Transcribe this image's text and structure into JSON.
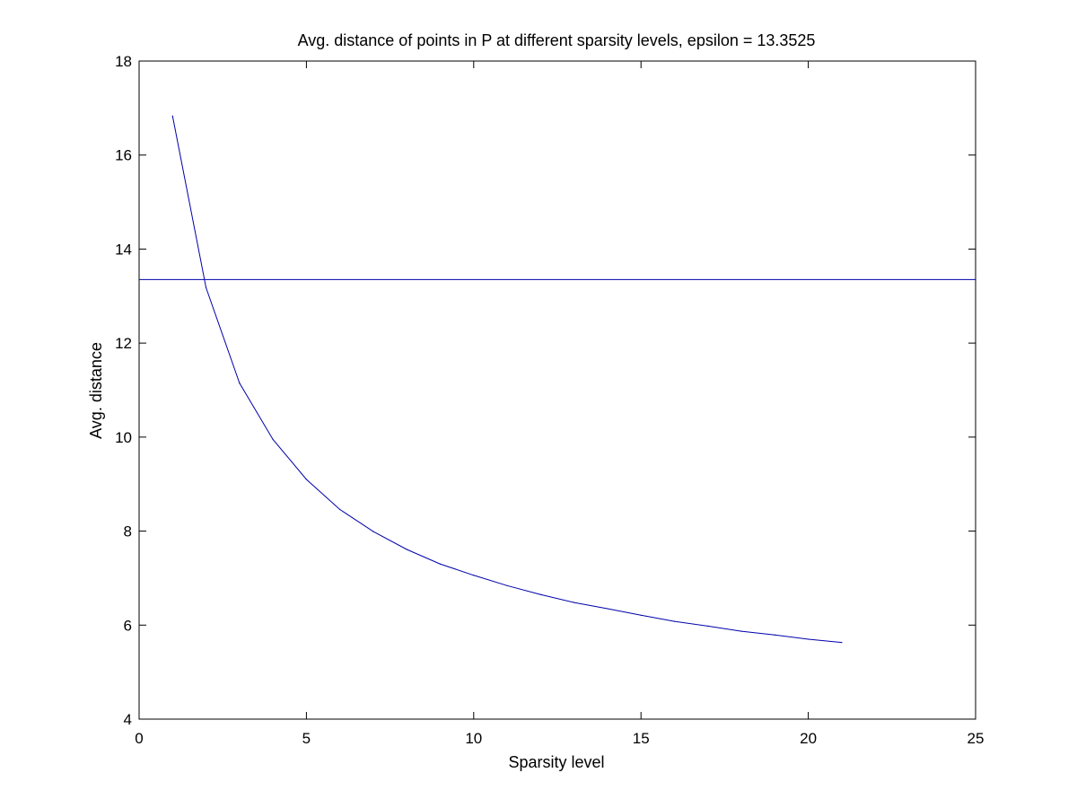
{
  "chart_data": {
    "type": "line",
    "title": "Avg. distance of points in P at different sparsity levels, epsilon = 13.3525",
    "xlabel": "Sparsity level",
    "ylabel": "Avg. distance",
    "xlim": [
      0,
      25
    ],
    "ylim": [
      4,
      18
    ],
    "xticks": [
      0,
      5,
      10,
      15,
      20,
      25
    ],
    "yticks": [
      4,
      6,
      8,
      10,
      12,
      14,
      16,
      18
    ],
    "grid": false,
    "legend": "none",
    "colors": {
      "series": "#0000aa",
      "axes": "#000000",
      "background": "#ffffff"
    },
    "series": [
      {
        "x": [
          1,
          2,
          3,
          4,
          5,
          6,
          7,
          8,
          9,
          10,
          11,
          12,
          13,
          14,
          15,
          16,
          17,
          18,
          19,
          20,
          21
        ],
        "values": [
          16.83,
          13.18,
          11.15,
          9.95,
          9.1,
          8.46,
          7.99,
          7.61,
          7.3,
          7.06,
          6.84,
          6.65,
          6.48,
          6.35,
          6.21,
          6.08,
          5.98,
          5.87,
          5.79,
          5.7,
          5.63
        ]
      }
    ],
    "reference_line": {
      "y": 13.3525
    }
  }
}
